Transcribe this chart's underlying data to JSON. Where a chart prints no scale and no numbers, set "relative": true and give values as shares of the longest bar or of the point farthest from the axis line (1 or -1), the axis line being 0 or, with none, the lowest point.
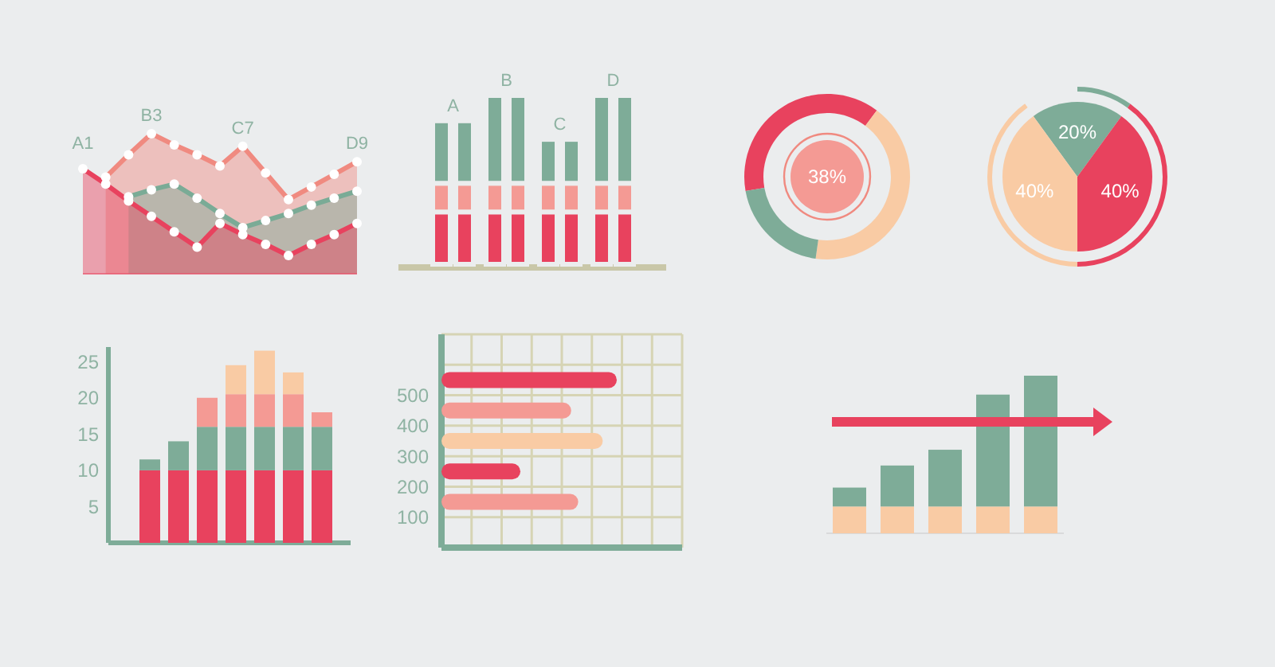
{
  "chart_data": [
    {
      "type": "area",
      "relative": true,
      "marker": "circle",
      "categories": [
        null,
        null,
        null,
        null,
        null,
        null,
        null,
        null,
        null,
        null,
        null,
        null,
        null
      ],
      "series": [
        {
          "color": "#f08a80",
          "values": [
            null,
            0.69,
            0.85,
            1.0,
            0.92,
            0.85,
            0.77,
            0.91,
            0.72,
            0.53,
            0.62,
            0.71,
            0.8
          ]
        },
        {
          "color": "#7aab96",
          "values": [
            null,
            null,
            0.55,
            0.6,
            0.64,
            0.54,
            0.43,
            0.33,
            0.38,
            0.43,
            0.49,
            0.54,
            0.59
          ]
        },
        {
          "color": "#e8425e",
          "values": [
            0.75,
            0.64,
            0.52,
            0.41,
            0.3,
            0.19,
            0.36,
            0.28,
            0.21,
            0.13,
            0.21,
            0.28,
            0.36
          ]
        }
      ],
      "annotations": [
        "A1",
        "B3",
        "C7",
        "D9"
      ]
    },
    {
      "type": "bar",
      "stacked": true,
      "relative": true,
      "categories": [
        null,
        null,
        null,
        null,
        null,
        null,
        null,
        null
      ],
      "series": [
        {
          "color": "#e8425e",
          "values": [
            0.31,
            0.31,
            0.31,
            0.31,
            0.31,
            0.31,
            0.31,
            0.31
          ]
        },
        {
          "color": "#f49a94",
          "values": [
            0.17,
            0.17,
            0.17,
            0.17,
            0.17,
            0.17,
            0.17,
            0.17
          ]
        },
        {
          "color": "#7eac98",
          "values": [
            0.37,
            0.37,
            0.52,
            0.52,
            0.26,
            0.26,
            0.52,
            0.52
          ]
        }
      ],
      "annotations": [
        "A",
        "B",
        "C",
        "D"
      ]
    },
    {
      "type": "donut",
      "categories": [
        null,
        null,
        null
      ],
      "values": [
        38,
        42,
        20
      ],
      "colors": [
        "#e8425e",
        "#f9cba4",
        "#7eac98"
      ],
      "annotations": [
        "38%"
      ]
    },
    {
      "type": "pie",
      "categories": [
        null,
        null,
        null
      ],
      "values": [
        20,
        40,
        40
      ],
      "colors": [
        "#7eac98",
        "#e8425e",
        "#f9cba4"
      ],
      "value_labels": [
        "20%",
        "40%",
        "40%"
      ]
    },
    {
      "type": "bar",
      "stacked": true,
      "categories": [
        null,
        null,
        null,
        null,
        null,
        null,
        null
      ],
      "ylim": [
        0,
        27
      ],
      "yticks": [
        5,
        10,
        15,
        20,
        25
      ],
      "tick_labels": "y",
      "series": [
        {
          "color": "#e8425e",
          "values": [
            10,
            10,
            10,
            10,
            10,
            10,
            10
          ]
        },
        {
          "color": "#7eac98",
          "values": [
            1.5,
            4,
            6,
            6,
            6,
            6,
            6
          ]
        },
        {
          "color": "#f49a94",
          "values": [
            0,
            0,
            4,
            4.5,
            4.5,
            4.5,
            2
          ]
        },
        {
          "color": "#f9cba4",
          "values": [
            0,
            0,
            0,
            4,
            6,
            3,
            0
          ]
        }
      ]
    },
    {
      "type": "bar",
      "orientation": "horizontal",
      "relative": true,
      "x": [
        550,
        450,
        350,
        250,
        150
      ],
      "values": [
        1,
        0.74,
        0.92,
        0.45,
        0.78
      ],
      "colors": [
        "#e8425e",
        "#f49a94",
        "#f9cba4",
        "#e8425e",
        "#f49a94"
      ],
      "ylim": [
        0,
        700
      ],
      "yticks": [
        100,
        200,
        300,
        400,
        500,
        {
          "value": 600,
          "label": null
        }
      ],
      "tick_labels": "y",
      "grid": true
    },
    {
      "type": "bar",
      "stacked": true,
      "relative": true,
      "categories": [
        null,
        null,
        null,
        null,
        null
      ],
      "series": [
        {
          "color": "#f9cba4",
          "values": [
            0.17,
            0.17,
            0.17,
            0.17,
            0.17
          ]
        },
        {
          "color": "#7eac98",
          "values": [
            0.12,
            0.26,
            0.36,
            0.71,
            0.83
          ]
        }
      ]
    }
  ]
}
